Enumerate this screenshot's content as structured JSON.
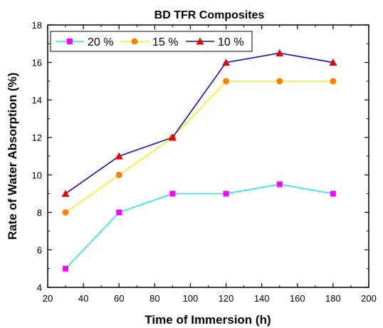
{
  "chart_data": {
    "type": "line",
    "title": "BD TFR Composites",
    "xlabel": "Time of Immersion (h)",
    "ylabel": "Rate of Water Absorption (%)",
    "x": [
      30,
      60,
      90,
      120,
      150,
      180
    ],
    "xlim": [
      20,
      200
    ],
    "ylim": [
      4,
      18
    ],
    "xticks": [
      20,
      40,
      60,
      80,
      100,
      120,
      140,
      160,
      180,
      200
    ],
    "yticks": [
      4,
      6,
      8,
      10,
      12,
      14,
      16,
      18
    ],
    "grid": false,
    "legend_position": "top-left",
    "series": [
      {
        "name": "20 %",
        "values": [
          5,
          8,
          9,
          9,
          9.5,
          9
        ],
        "line_color": "#22e5f0",
        "marker_color": "#ff00ff",
        "marker": "square"
      },
      {
        "name": "15 %",
        "values": [
          8,
          10,
          12,
          15,
          15,
          15
        ],
        "line_color": "#f5ef1f",
        "marker_color": "#ff8000",
        "marker": "circle"
      },
      {
        "name": "10 %",
        "values": [
          9,
          11,
          12,
          16,
          16.5,
          16
        ],
        "line_color": "#1010c0",
        "marker_color": "#ee0000",
        "marker": "triangle"
      }
    ]
  }
}
